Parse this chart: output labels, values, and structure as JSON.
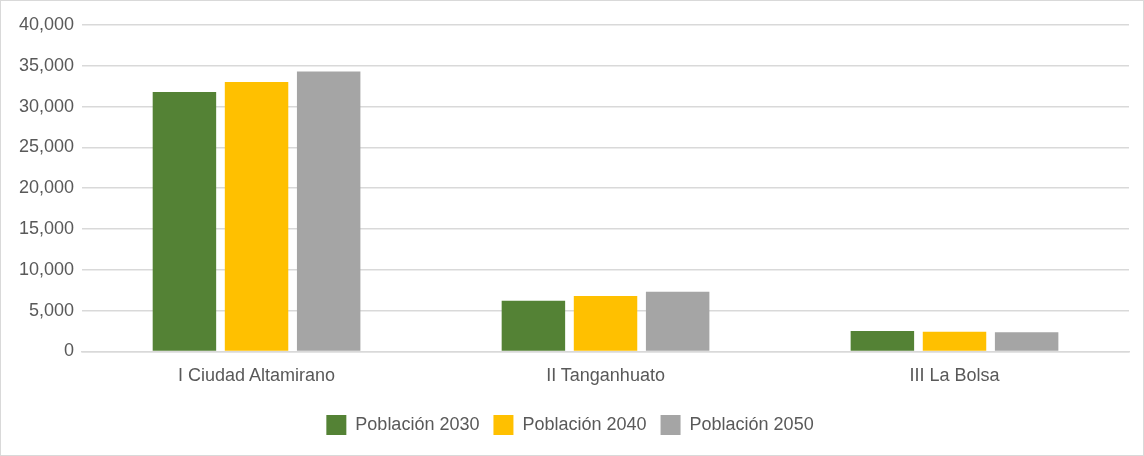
{
  "chart_data": {
    "type": "bar",
    "categories": [
      "I Ciudad Altamirano",
      "II Tanganhuato",
      "III La Bolsa"
    ],
    "series": [
      {
        "name": "Población 2030",
        "color": "#548235",
        "values": [
          31800,
          6200,
          2500
        ]
      },
      {
        "name": "Población 2040",
        "color": "#ffc000",
        "values": [
          33000,
          6800,
          2400
        ]
      },
      {
        "name": "Población 2050",
        "color": "#a5a5a5",
        "values": [
          34300,
          7300,
          2350
        ]
      }
    ],
    "ylim": [
      0,
      40000
    ],
    "yticks": [
      {
        "value": 0,
        "label": "0"
      },
      {
        "value": 5000,
        "label": "5,000"
      },
      {
        "value": 10000,
        "label": "10,000"
      },
      {
        "value": 15000,
        "label": "15,000"
      },
      {
        "value": 20000,
        "label": "20,000"
      },
      {
        "value": 25000,
        "label": "25,000"
      },
      {
        "value": 30000,
        "label": "30,000"
      },
      {
        "value": 35000,
        "label": "35,000"
      },
      {
        "value": 40000,
        "label": "40,000"
      }
    ],
    "grid": "y",
    "legend": "bottom"
  }
}
